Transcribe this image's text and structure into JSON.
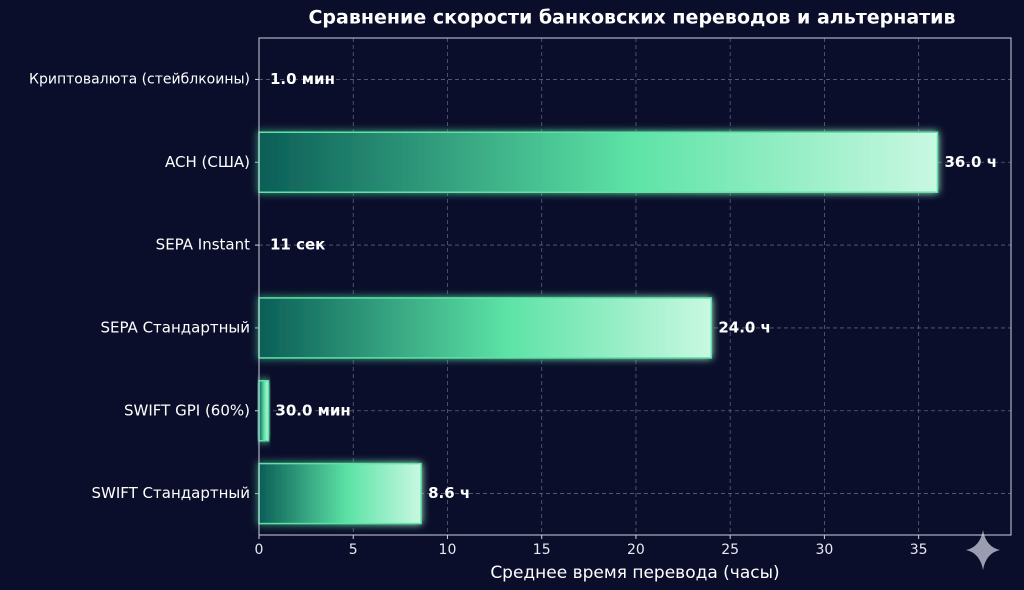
{
  "chart_data": {
    "type": "bar",
    "orientation": "horizontal",
    "title": "Сравнение скорости банковских переводов и альтернатив",
    "x_label": "Среднее время перевода (часы)",
    "categories": [
      "Криптовалюта (стейблкоины)",
      "ACH (США)",
      "SEPA Instant",
      "SEPA Стандартный",
      "SWIFT GPI (60%)",
      "SWIFT Стандартный"
    ],
    "values": [
      0.0166667,
      36.0,
      0.0030556,
      24.0,
      0.5,
      8.6
    ],
    "value_labels": [
      "1.0 мин",
      "36.0 ч",
      "11 сек",
      "24.0 ч",
      "30.0 мин",
      "8.6 ч"
    ],
    "color": "#5de3a6",
    "xlim": [
      0,
      39.9
    ],
    "xticks": [
      0,
      5,
      10,
      15,
      20,
      25,
      30,
      35
    ],
    "grid": true
  }
}
